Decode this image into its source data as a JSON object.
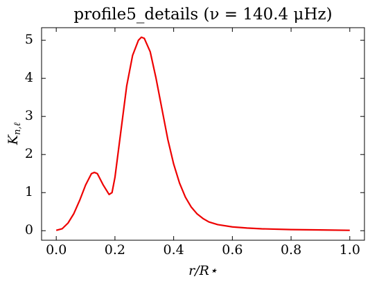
{
  "chart_data": {
    "type": "line",
    "title": "profile5_details (ν = 140.4 μHz)",
    "xlabel": "r/R⋆",
    "ylabel": {
      "main": "K",
      "sub": "n,ℓ"
    },
    "xlim": [
      -0.05,
      1.05
    ],
    "ylim": [
      -0.25,
      5.33
    ],
    "xticks": [
      {
        "value": 0,
        "label": "0.0"
      },
      {
        "value": 0.2,
        "label": "0.2"
      },
      {
        "value": 0.4,
        "label": "0.4"
      },
      {
        "value": 0.6,
        "label": "0.6"
      },
      {
        "value": 0.8,
        "label": "0.8"
      },
      {
        "value": 1,
        "label": "1.0"
      }
    ],
    "yticks": [
      0,
      1,
      2,
      3,
      4,
      5
    ],
    "grid": false,
    "x": [
      0,
      0.02,
      0.04,
      0.06,
      0.08,
      0.1,
      0.12,
      0.13,
      0.14,
      0.16,
      0.18,
      0.19,
      0.2,
      0.22,
      0.24,
      0.26,
      0.28,
      0.29,
      0.3,
      0.32,
      0.34,
      0.36,
      0.38,
      0.4,
      0.42,
      0.44,
      0.46,
      0.48,
      0.5,
      0.52,
      0.55,
      0.6,
      0.65,
      0.7,
      0.8,
      0.9,
      1.0
    ],
    "series": [
      {
        "color": "#ee0000",
        "values": [
          0.01,
          0.05,
          0.2,
          0.45,
          0.8,
          1.2,
          1.5,
          1.53,
          1.5,
          1.2,
          0.95,
          1.0,
          1.4,
          2.6,
          3.8,
          4.6,
          5.0,
          5.08,
          5.05,
          4.7,
          4.0,
          3.2,
          2.4,
          1.75,
          1.25,
          0.88,
          0.62,
          0.44,
          0.32,
          0.23,
          0.16,
          0.1,
          0.07,
          0.05,
          0.03,
          0.02,
          0.01
        ]
      }
    ]
  }
}
